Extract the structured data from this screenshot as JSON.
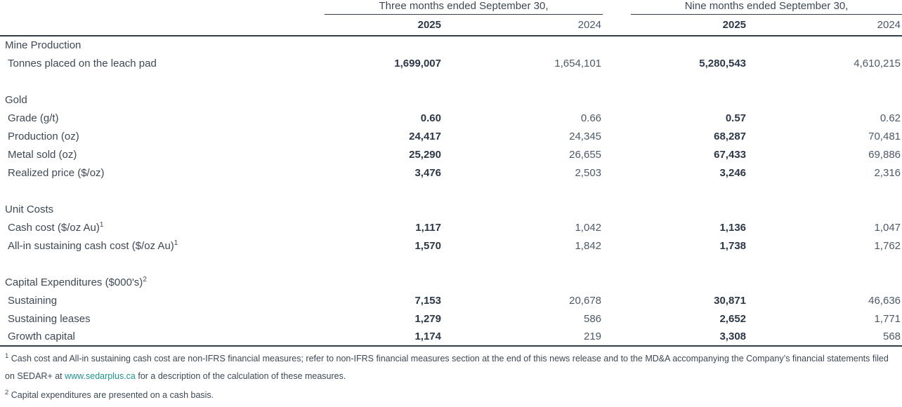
{
  "table": {
    "col_groups": [
      {
        "label": "Three months ended September 30,"
      },
      {
        "label": "Nine months ended September 30,"
      }
    ],
    "year_headers": [
      "2025",
      "2024",
      "2025",
      "2024"
    ],
    "sections": [
      {
        "title": "Mine Production",
        "title_sup": "",
        "rows": [
          {
            "label": "Tonnes placed on the leach pad",
            "sup": "",
            "values": [
              "1,699,007",
              "1,654,101",
              "5,280,543",
              "4,610,215"
            ]
          }
        ]
      },
      {
        "title": "Gold",
        "title_sup": "",
        "rows": [
          {
            "label": "Grade (g/t)",
            "sup": "",
            "values": [
              "0.60",
              "0.66",
              "0.57",
              "0.62"
            ]
          },
          {
            "label": "Production (oz)",
            "sup": "",
            "values": [
              "24,417",
              "24,345",
              "68,287",
              "70,481"
            ]
          },
          {
            "label": "Metal sold (oz)",
            "sup": "",
            "values": [
              "25,290",
              "26,655",
              "67,433",
              "69,886"
            ]
          },
          {
            "label": "Realized price ($/oz)",
            "sup": "",
            "values": [
              "3,476",
              "2,503",
              "3,246",
              "2,316"
            ]
          }
        ]
      },
      {
        "title": "Unit Costs",
        "title_sup": "",
        "rows": [
          {
            "label": "Cash cost ($/oz Au)",
            "sup": "1",
            "values": [
              "1,117",
              "1,042",
              "1,136",
              "1,047"
            ]
          },
          {
            "label": "All-in sustaining cash cost ($/oz Au)",
            "sup": "1",
            "values": [
              "1,570",
              "1,842",
              "1,738",
              "1,762"
            ]
          }
        ]
      },
      {
        "title": "Capital Expenditures ($000's)",
        "title_sup": "2",
        "rows": [
          {
            "label": "Sustaining",
            "sup": "",
            "values": [
              "7,153",
              "20,678",
              "30,871",
              "46,636"
            ]
          },
          {
            "label": "Sustaining leases",
            "sup": "",
            "values": [
              "1,279",
              "586",
              "2,652",
              "1,771"
            ]
          },
          {
            "label": "Growth capital",
            "sup": "",
            "values": [
              "1,174",
              "219",
              "3,308",
              "568"
            ]
          }
        ]
      }
    ]
  },
  "footnotes": [
    {
      "sup": "1",
      "text_before_link": " Cash cost and All-in sustaining cash cost are non-IFRS financial measures; refer to non-IFRS financial measures section at the end of this news release and to the MD&A accompanying the Company’s financial statements filed on SEDAR+ at ",
      "link": "www.sedarplus.ca",
      "text_after_link": " for a description of the calculation of these measures."
    },
    {
      "sup": "2",
      "text_before_link": " Capital expenditures are presented on a cash basis.",
      "link": "",
      "text_after_link": ""
    }
  ],
  "colors": {
    "text": "#3e4856",
    "bold_value": "#2c3847",
    "regular_value": "#4d5969",
    "rule": "#323c4b",
    "link": "#1d9690",
    "background": "#ffffff"
  }
}
